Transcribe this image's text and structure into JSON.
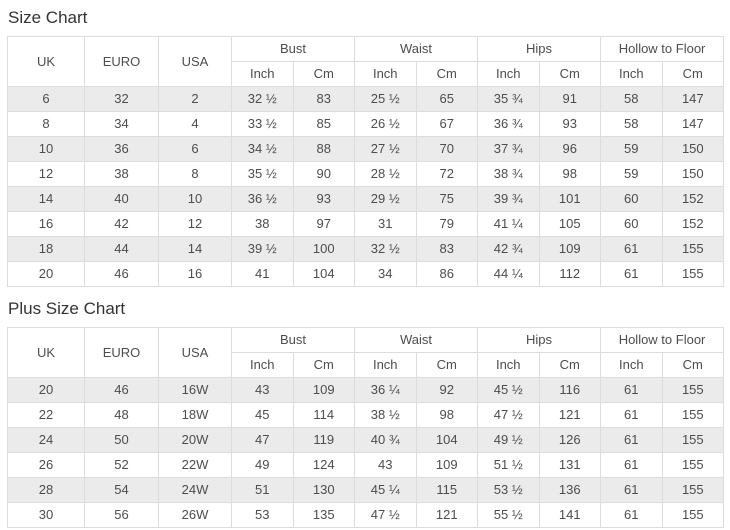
{
  "colors": {
    "stripe": "#ebebeb",
    "border": "#dcdcdc",
    "text": "#4d4d4d",
    "title": "#333333",
    "background": "#ffffff"
  },
  "header_labels": {
    "uk": "UK",
    "euro": "EURO",
    "usa": "USA",
    "bust": "Bust",
    "waist": "Waist",
    "hips": "Hips",
    "hollow_to_floor": "Hollow to Floor",
    "inch": "Inch",
    "cm": "Cm"
  },
  "size_chart": {
    "title": "Size Chart",
    "rows": [
      [
        "6",
        "32",
        "2",
        "32 ½",
        "83",
        "25 ½",
        "65",
        "35 ¾",
        "91",
        "58",
        "147"
      ],
      [
        "8",
        "34",
        "4",
        "33 ½",
        "85",
        "26 ½",
        "67",
        "36 ¾",
        "93",
        "58",
        "147"
      ],
      [
        "10",
        "36",
        "6",
        "34 ½",
        "88",
        "27 ½",
        "70",
        "37 ¾",
        "96",
        "59",
        "150"
      ],
      [
        "12",
        "38",
        "8",
        "35 ½",
        "90",
        "28 ½",
        "72",
        "38 ¾",
        "98",
        "59",
        "150"
      ],
      [
        "14",
        "40",
        "10",
        "36 ½",
        "93",
        "29 ½",
        "75",
        "39 ¾",
        "101",
        "60",
        "152"
      ],
      [
        "16",
        "42",
        "12",
        "38",
        "97",
        "31",
        "79",
        "41 ¼",
        "105",
        "60",
        "152"
      ],
      [
        "18",
        "44",
        "14",
        "39 ½",
        "100",
        "32 ½",
        "83",
        "42 ¾",
        "109",
        "61",
        "155"
      ],
      [
        "20",
        "46",
        "16",
        "41",
        "104",
        "34",
        "86",
        "44 ¼",
        "112",
        "61",
        "155"
      ]
    ]
  },
  "plus_size_chart": {
    "title": "Plus Size Chart",
    "rows": [
      [
        "20",
        "46",
        "16W",
        "43",
        "109",
        "36 ¼",
        "92",
        "45 ½",
        "116",
        "61",
        "155"
      ],
      [
        "22",
        "48",
        "18W",
        "45",
        "114",
        "38 ½",
        "98",
        "47 ½",
        "121",
        "61",
        "155"
      ],
      [
        "24",
        "50",
        "20W",
        "47",
        "119",
        "40 ¾",
        "104",
        "49 ½",
        "126",
        "61",
        "155"
      ],
      [
        "26",
        "52",
        "22W",
        "49",
        "124",
        "43",
        "109",
        "51 ½",
        "131",
        "61",
        "155"
      ],
      [
        "28",
        "54",
        "24W",
        "51",
        "130",
        "45 ¼",
        "115",
        "53 ½",
        "136",
        "61",
        "155"
      ],
      [
        "30",
        "56",
        "26W",
        "53",
        "135",
        "47 ½",
        "121",
        "55 ½",
        "141",
        "61",
        "155"
      ]
    ]
  }
}
